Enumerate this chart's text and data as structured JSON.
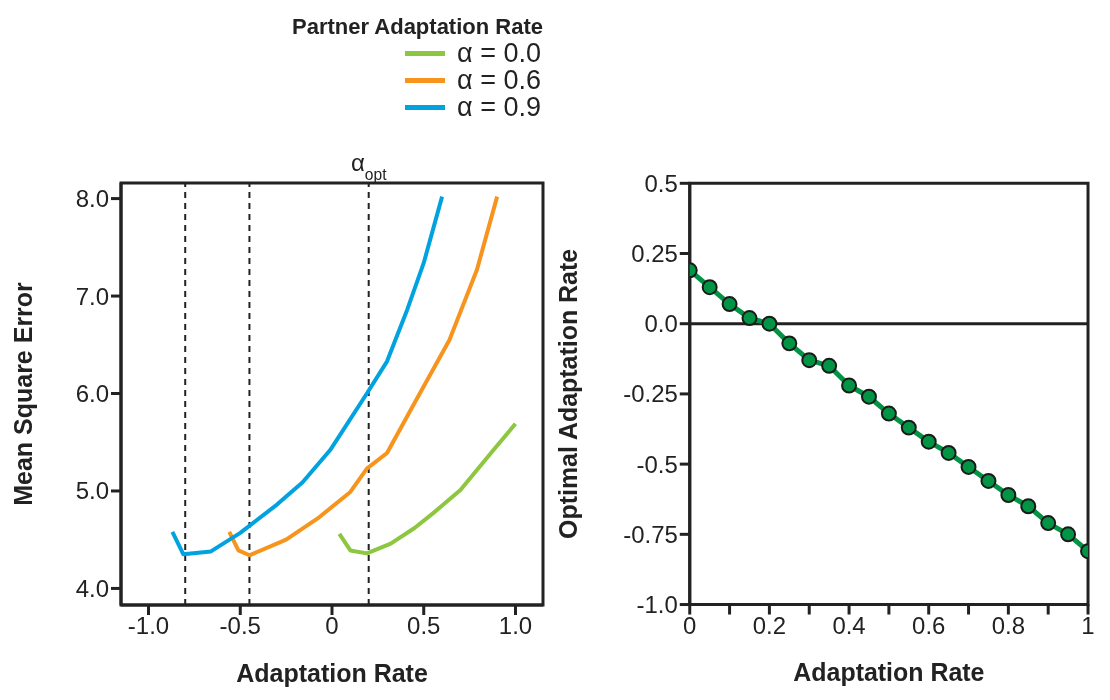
{
  "chart_data": [
    {
      "type": "line",
      "xlabel": "Adaptation Rate",
      "ylabel": "Mean Square Error",
      "legend_title": "Partner Adaptation Rate",
      "legend": "top right",
      "marker": "none",
      "line_style": "solid",
      "xlim": [
        -1.15,
        1.15
      ],
      "ylim": [
        3.83,
        8.16
      ],
      "xticks": [
        {
          "value": -1,
          "label": "-1.0"
        },
        -0.5,
        0,
        0.5,
        {
          "value": 1,
          "label": "1.0"
        }
      ],
      "yticks": [
        {
          "value": 4,
          "label": "4.0"
        },
        {
          "value": 5,
          "label": "5.0"
        },
        {
          "value": 6,
          "label": "6.0"
        },
        {
          "value": 7,
          "label": "7.0"
        },
        {
          "value": 8,
          "label": "8.0"
        }
      ],
      "ref_lines": [
        {
          "axis": "x",
          "value": -0.8,
          "line_style": "dashed",
          "color": "#222222"
        },
        {
          "axis": "x",
          "value": -0.45,
          "line_style": "dashed",
          "color": "#222222"
        },
        {
          "axis": "x",
          "value": 0.2,
          "line_style": "dashed",
          "color": "#222222",
          "label": "α$_{opt}$"
        }
      ],
      "series": [
        {
          "name": "α = 0.0",
          "color": "#8dc63f",
          "x": [
            0.04,
            0.1,
            0.19,
            0.32,
            0.45,
            0.55,
            0.7,
            0.88,
            1.0
          ],
          "values": [
            4.56,
            4.39,
            4.36,
            4.46,
            4.62,
            4.77,
            5.01,
            5.42,
            5.69
          ]
        },
        {
          "name": "α = 0.6",
          "color": "#f7941d",
          "x": [
            -0.56,
            -0.51,
            -0.45,
            -0.25,
            -0.07,
            0.1,
            0.19,
            0.3,
            0.44,
            0.64,
            0.79,
            0.9
          ],
          "values": [
            4.58,
            4.39,
            4.34,
            4.5,
            4.73,
            4.99,
            5.23,
            5.39,
            5.87,
            6.55,
            7.27,
            8.02
          ]
        },
        {
          "name": "α = 0.9",
          "color": "#00a3e0",
          "x": [
            -0.87,
            -0.81,
            -0.66,
            -0.5,
            -0.3,
            -0.16,
            -0.01,
            0.19,
            0.3,
            0.41,
            0.5,
            0.6
          ],
          "values": [
            4.58,
            4.35,
            4.38,
            4.57,
            4.86,
            5.09,
            5.42,
            6.0,
            6.33,
            6.86,
            7.34,
            8.02
          ]
        }
      ]
    },
    {
      "type": "line",
      "xlabel": "Adaptation Rate",
      "ylabel": "Optimal Adaptation Rate",
      "marker": "circle",
      "line_style": "solid",
      "xlim": [
        0,
        1
      ],
      "ylim": [
        -1,
        0.5
      ],
      "xticks": [
        0,
        {
          "value": 0.1,
          "label": null
        },
        0.2,
        {
          "value": 0.3,
          "label": null
        },
        0.4,
        {
          "value": 0.5,
          "label": null
        },
        0.6,
        {
          "value": 0.7,
          "label": null
        },
        0.8,
        {
          "value": 0.9,
          "label": null
        },
        1
      ],
      "yticks": [
        {
          "value": -1,
          "label": "-1.0"
        },
        -0.75,
        -0.5,
        -0.25,
        {
          "value": 0,
          "label": "0.0"
        },
        0.25,
        0.5
      ],
      "ref_lines": [
        {
          "axis": "y",
          "value": 0,
          "line_style": "solid",
          "color": "#222222"
        }
      ],
      "x": [
        0,
        0.05,
        0.1,
        0.15,
        0.2,
        0.25,
        0.3,
        0.35,
        0.4,
        0.45,
        0.5,
        0.55,
        0.6,
        0.65,
        0.7,
        0.75,
        0.8,
        0.85,
        0.9,
        0.95,
        1.0
      ],
      "series": [
        {
          "color": "#009444",
          "values": [
            0.19,
            0.13,
            0.07,
            0.02,
            0.0,
            -0.07,
            -0.13,
            -0.15,
            -0.22,
            -0.26,
            -0.32,
            -0.37,
            -0.42,
            -0.46,
            -0.51,
            -0.56,
            -0.61,
            -0.65,
            -0.71,
            -0.75,
            -0.81
          ]
        }
      ]
    }
  ]
}
